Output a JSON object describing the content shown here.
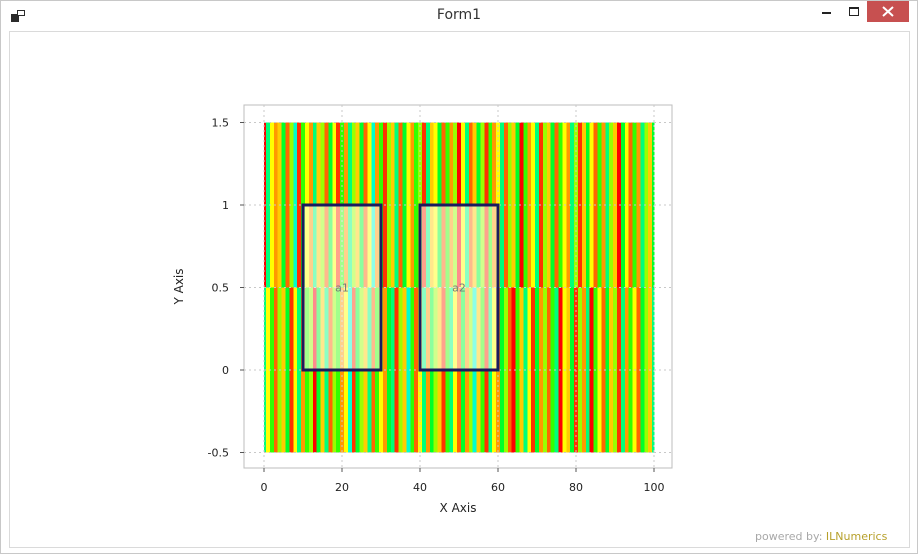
{
  "window": {
    "title": "Form1",
    "icons": {
      "app": "app-icon",
      "minimize": "minimize-icon",
      "maximize": "maximize-icon",
      "close": "close-icon"
    },
    "colors": {
      "close_button": "#c75050"
    }
  },
  "footer": {
    "powered_by": "powered by: ",
    "brand": "ILNumerics",
    "brand_color": "#b7a02b"
  },
  "chart_data": {
    "type": "heatmap",
    "title": "",
    "xlabel": "X Axis",
    "ylabel": "Y Axis",
    "xlim": [
      -5,
      102
    ],
    "ylim": [
      -0.6,
      1.6
    ],
    "xticks": [
      0,
      20,
      40,
      60,
      80,
      100
    ],
    "xtick_labels": [
      "0",
      "20",
      "40",
      "60",
      "80",
      "100"
    ],
    "yticks": [
      -0.5,
      0,
      0.5,
      1,
      1.5
    ],
    "ytick_labels": [
      "-0.5",
      "0",
      "0.5",
      "1",
      "1.5"
    ],
    "grid": true,
    "colormap": [
      "#ff0000",
      "#ff8000",
      "#ffff00",
      "#00ff00",
      "#00ffcc"
    ],
    "rows": [
      {
        "y_range": [
          0.5,
          1.5
        ],
        "values": [
          0.0,
          0.9,
          0.5,
          0.3,
          0.4,
          0.8,
          0.2,
          0.6,
          1.0,
          0.1,
          0.7,
          0.5,
          0.3,
          0.9,
          0.4,
          0.6,
          0.2,
          0.8,
          0.5,
          0.1,
          0.7,
          0.3,
          0.9,
          0.6,
          0.4,
          0.8,
          0.2,
          0.5,
          1.0,
          0.3,
          0.7,
          0.1,
          0.6,
          0.4,
          0.9,
          0.2,
          0.8,
          0.5,
          0.3,
          0.7,
          0.6,
          0.1,
          0.9,
          0.4,
          0.5,
          0.8,
          0.2,
          0.7,
          0.3,
          0.6,
          0.0,
          0.5,
          0.9,
          0.2,
          0.4,
          0.8,
          0.6,
          0.1,
          0.7,
          0.3,
          0.5,
          0.9,
          0.2,
          0.6,
          0.4,
          0.8,
          0.0,
          0.7,
          0.3,
          0.5,
          0.9,
          0.1,
          0.6,
          0.4,
          0.8,
          0.2,
          0.7,
          0.5,
          0.3,
          0.9,
          0.6,
          0.1,
          0.4,
          0.8,
          0.5,
          0.2,
          0.7,
          0.3,
          0.9,
          0.6,
          0.4,
          0.0,
          0.8,
          0.5,
          0.2,
          0.7,
          0.3,
          0.9,
          0.6,
          0.4,
          0.8
        ]
      },
      {
        "y_range": [
          -0.5,
          0.5
        ],
        "values": [
          0.9,
          0.5,
          0.7,
          0.2,
          0.6,
          0.4,
          0.8,
          0.1,
          0.5,
          0.9,
          0.3,
          0.7,
          0.6,
          0.0,
          0.8,
          0.4,
          0.9,
          0.2,
          0.6,
          0.7,
          0.3,
          0.5,
          1.0,
          0.1,
          0.8,
          0.6,
          0.4,
          0.9,
          0.2,
          0.7,
          0.5,
          0.3,
          0.8,
          0.9,
          0.1,
          0.6,
          0.4,
          1.0,
          0.7,
          0.2,
          0.5,
          0.9,
          0.3,
          0.8,
          0.6,
          0.4,
          0.1,
          0.7,
          0.9,
          0.5,
          0.2,
          0.8,
          0.3,
          0.6,
          1.0,
          0.4,
          0.7,
          0.1,
          0.9,
          0.5,
          0.3,
          0.8,
          0.6,
          0.2,
          0.0,
          0.7,
          0.4,
          0.9,
          0.5,
          0.1,
          0.8,
          0.3,
          0.6,
          0.2,
          0.7,
          0.9,
          0.0,
          0.5,
          0.4,
          0.8,
          0.1,
          0.6,
          0.3,
          0.9,
          0.0,
          0.7,
          0.5,
          0.2,
          0.8,
          0.4,
          0.6,
          0.1,
          0.9,
          0.3,
          0.7,
          0.5,
          0.2,
          0.8,
          0.6,
          0.4,
          0.9
        ]
      }
    ],
    "annotations": [
      {
        "label": "a1",
        "x_range": [
          10,
          30
        ],
        "y_range": [
          0,
          1
        ],
        "border_color": "#1a1a5e",
        "fill": "#ffffff",
        "fill_opacity": 0.55
      },
      {
        "label": "a2",
        "x_range": [
          40,
          60
        ],
        "y_range": [
          0,
          1
        ],
        "border_color": "#1a1a5e",
        "fill": "#ffffff",
        "fill_opacity": 0.55
      }
    ]
  }
}
